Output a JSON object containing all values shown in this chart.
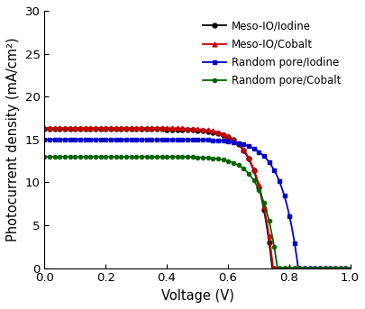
{
  "title": "",
  "xlabel": "Voltage (V)",
  "ylabel": "Photocurrent density (mA/cm²)",
  "xlim": [
    0.0,
    1.0
  ],
  "ylim": [
    0,
    30
  ],
  "xticks": [
    0.0,
    0.2,
    0.4,
    0.6,
    0.8,
    1.0
  ],
  "yticks": [
    0,
    5,
    10,
    15,
    20,
    25,
    30
  ],
  "series": [
    {
      "label": "Meso-IO/Iodine",
      "color": "#000000",
      "marker": "o",
      "markersize": 3.5,
      "Jsc": 16.2,
      "Voc": 0.745,
      "n_Vt": 0.05
    },
    {
      "label": "Meso-IO/Cobalt",
      "color": "#cc0000",
      "marker": "^",
      "markersize": 3.5,
      "Jsc": 16.35,
      "Voc": 0.748,
      "n_Vt": 0.052
    },
    {
      "label": "Random pore/Iodine",
      "color": "#0000cc",
      "marker": "s",
      "markersize": 3.5,
      "Jsc": 15.0,
      "Voc": 0.83,
      "n_Vt": 0.055
    },
    {
      "label": "Random pore/Cobalt",
      "color": "#006600",
      "marker": "o",
      "markersize": 3.0,
      "Jsc": 13.0,
      "Voc": 0.762,
      "n_Vt": 0.05
    }
  ],
  "legend_loc": "upper right",
  "legend_fontsize": 8.5,
  "axis_fontsize": 10.5,
  "tick_fontsize": 9.5,
  "marker_every": 10,
  "figure_width": 4.06,
  "figure_height": 3.43,
  "dpi": 100
}
